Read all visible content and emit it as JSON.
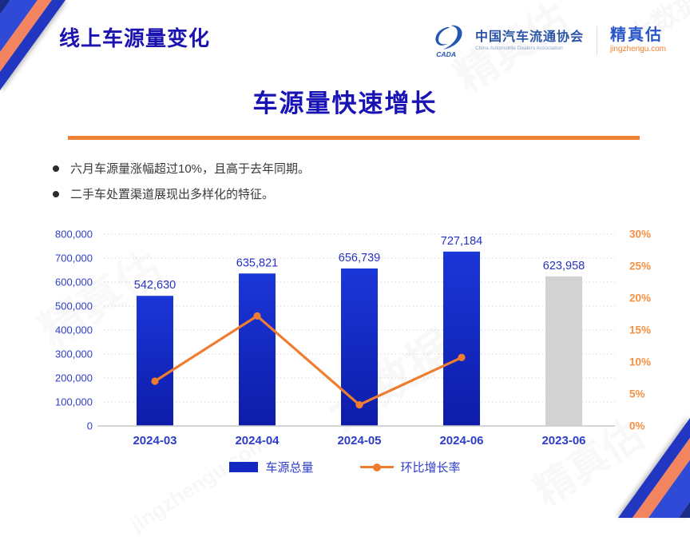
{
  "header": {
    "page_title": "线上车源量变化",
    "logo_text": "CADA",
    "org_name": "中国汽车流通协会",
    "org_name_en": "China Automobile Dealers Association",
    "brand_name": "精真估",
    "brand_site": "jingzhengu.com"
  },
  "slide": {
    "title": "车源量快速增长",
    "bullets": [
      "六月车源量涨幅超过10%，且高于去年同期。",
      "二手车处置渠道展现出多样化的特征。"
    ]
  },
  "chart_data": {
    "type": "bar",
    "subtype": "bar+line combo, last bar grayed (prior-year comparison)",
    "title": "",
    "categories": [
      "2024-03",
      "2024-04",
      "2024-05",
      "2024-06",
      "2023-06"
    ],
    "series": [
      {
        "name": "车源总量",
        "type": "bar",
        "axis": "left",
        "values": [
          542630,
          635821,
          656739,
          727184,
          623958
        ],
        "value_labels": [
          "542,630",
          "635,821",
          "656,739",
          "727,184",
          "623,958"
        ]
      },
      {
        "name": "环比增长率",
        "type": "line",
        "axis": "right",
        "values_percent": [
          7.0,
          17.2,
          3.3,
          10.7,
          null
        ]
      }
    ],
    "left_axis": {
      "min": 0,
      "max": 800000,
      "step": 100000,
      "tick_labels": [
        "800,000",
        "700,000",
        "600,000",
        "500,000",
        "400,000",
        "300,000",
        "200,000",
        "100,000",
        "0"
      ]
    },
    "right_axis": {
      "min_percent": 0,
      "max_percent": 30,
      "step_percent": 5,
      "tick_labels": [
        "30%",
        "25%",
        "20%",
        "15%",
        "10%",
        "5%",
        "0%"
      ]
    },
    "legend": {
      "position": "bottom",
      "items": [
        "车源总量",
        "环比增长率"
      ]
    },
    "grid": "horizontal dotted",
    "colors": {
      "bar_top": "#1b36d8",
      "bar_bottom": "#0d1ca8",
      "bar_gray": "#d2d2d2",
      "line": "#ee7d2f",
      "left_tick": "#2f3fc7",
      "right_tick": "#f79043",
      "category_label": "#2d3dc5",
      "value_label": "#2533c5",
      "baseline": "#c9c9c9",
      "gridline": "#d4d4d4"
    }
  },
  "watermarks": [
    "精真估",
    "大数据",
    "精真估",
    "大数据",
    "精真估",
    "jingzhengu.com"
  ],
  "theme": {
    "accent_orange": "#ef8136",
    "accent_blue": "#1813b5",
    "stripe_navy": "#1b2c86",
    "stripe_bright": "#2e4ad7",
    "stripe_orange": "#f2845f",
    "stripe_royal": "#2137c1"
  }
}
